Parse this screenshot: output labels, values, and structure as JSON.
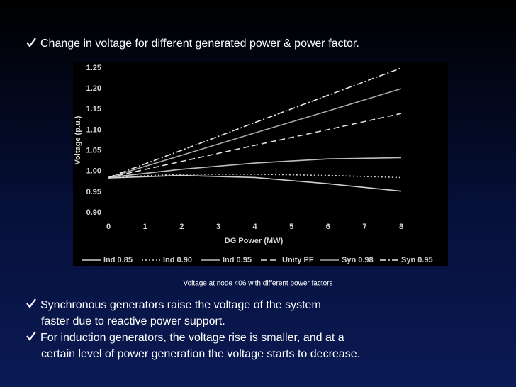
{
  "heading": "Change in voltage for different generated power & power factor.",
  "caption": "Voltage at node 406 with different power factors",
  "bullets": [
    [
      "Synchronous generators raise the voltage of the system",
      "faster due to reactive power support."
    ],
    [
      "For induction generators, the voltage rise is smaller, and at  a",
      "certain level of power generation the voltage starts to decrease."
    ]
  ],
  "chart_data": {
    "type": "line",
    "x_label": "DG Power (MW)",
    "y_label": "Voltage (p.u.)",
    "x": [
      0,
      2,
      4,
      6,
      8
    ],
    "xlim": [
      0,
      8
    ],
    "xticks": [
      0,
      1,
      2,
      3,
      4,
      5,
      6,
      7,
      8
    ],
    "ylim": [
      0.9,
      1.25
    ],
    "yticks": [
      {
        "value": 0.9,
        "label": "0.90"
      },
      {
        "value": 0.95,
        "label": "0.95"
      },
      {
        "value": 1.0,
        "label": "1.00"
      },
      {
        "value": 1.05,
        "label": "1.05"
      },
      {
        "value": 1.1,
        "label": "1.10"
      },
      {
        "value": 1.15,
        "label": "1.15"
      },
      {
        "value": 1.2,
        "label": "1.20"
      },
      {
        "value": 1.25,
        "label": "1.25"
      }
    ],
    "legend": "bottom",
    "series": [
      {
        "name": "Ind 0.85",
        "color": "#d0d0d0",
        "dash": "solid",
        "values": [
          0.984,
          0.99,
          0.985,
          0.97,
          0.952
        ]
      },
      {
        "name": "Ind 0.90",
        "color": "#d0d0d0",
        "dash": "dotted",
        "values": [
          0.985,
          0.993,
          0.993,
          0.99,
          0.985
        ]
      },
      {
        "name": "Ind 0.95",
        "color": "#bdbdbd",
        "dash": "solid",
        "values": [
          0.985,
          1.005,
          1.02,
          1.03,
          1.033
        ]
      },
      {
        "name": "Unity PF",
        "color": "#e0e0e0",
        "dash": "dashed",
        "values": [
          0.985,
          1.024,
          1.063,
          1.101,
          1.14
        ]
      },
      {
        "name": "Syn 0.98",
        "color": "#a8a8a8",
        "dash": "solid",
        "values": [
          0.985,
          1.039,
          1.093,
          1.146,
          1.2
        ]
      },
      {
        "name": "Syn 0.95",
        "color": "#e8e8e8",
        "dash": "dashdot",
        "values": [
          0.985,
          1.051,
          1.118,
          1.184,
          1.25
        ]
      }
    ]
  }
}
